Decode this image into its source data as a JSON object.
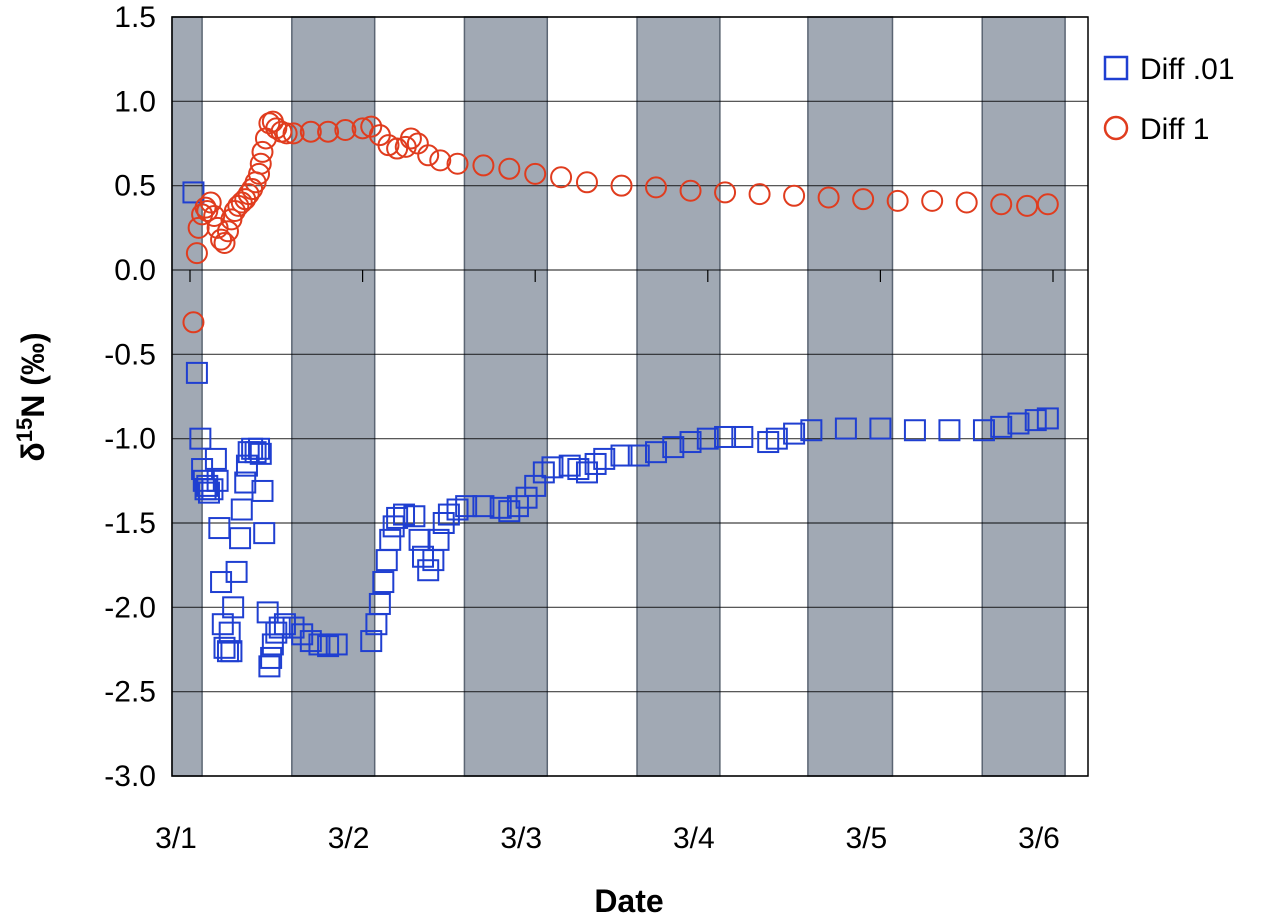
{
  "chart_data": {
    "type": "scatter",
    "xlabel": "Date",
    "ylabel": "δ15N (‰)",
    "ylabel_parts": {
      "pre": "δ",
      "sup": "15",
      "post": "N (‰)"
    },
    "ylim": [
      -3.0,
      1.5
    ],
    "y_ticks": [
      "1.5",
      "1.0",
      "0.5",
      "0.0",
      "-0.5",
      "-1.0",
      "-1.5",
      "-2.0",
      "-2.5",
      "-3.0"
    ],
    "y_tick_values": [
      1.5,
      1.0,
      0.5,
      0.0,
      -0.5,
      -1.0,
      -1.5,
      -2.0,
      -2.5,
      -3.0
    ],
    "xlim": [
      "3/1",
      "3/6"
    ],
    "x_ticks": [
      "3/1",
      "3/2",
      "3/3",
      "3/4",
      "3/5",
      "3/6"
    ],
    "grid": "horizontal",
    "legend_position": "top-right",
    "night_shading": {
      "color": "#a1a9b4",
      "periods": [
        [
          -0.15,
          0.07
        ],
        [
          0.59,
          1.07
        ],
        [
          1.59,
          2.07
        ],
        [
          2.59,
          3.07
        ],
        [
          3.58,
          4.07
        ],
        [
          4.59,
          5.07
        ]
      ]
    },
    "series": [
      {
        "name": "Diff .01",
        "marker": "square",
        "color": "#1f3fd1",
        "points": [
          [
            0.02,
            0.46
          ],
          [
            0.04,
            -0.61
          ],
          [
            0.06,
            -1.0
          ],
          [
            0.07,
            -1.18
          ],
          [
            0.08,
            -1.25
          ],
          [
            0.09,
            -1.3
          ],
          [
            0.1,
            -1.28
          ],
          [
            0.11,
            -1.32
          ],
          [
            0.13,
            -1.3
          ],
          [
            0.15,
            -1.12
          ],
          [
            0.16,
            -1.25
          ],
          [
            0.17,
            -1.53
          ],
          [
            0.18,
            -1.85
          ],
          [
            0.19,
            -2.1
          ],
          [
            0.2,
            -2.24
          ],
          [
            0.22,
            -2.26
          ],
          [
            0.23,
            -2.15
          ],
          [
            0.24,
            -2.26
          ],
          [
            0.25,
            -2.0
          ],
          [
            0.27,
            -1.79
          ],
          [
            0.29,
            -1.59
          ],
          [
            0.3,
            -1.42
          ],
          [
            0.32,
            -1.26
          ],
          [
            0.33,
            -1.16
          ],
          [
            0.34,
            -1.08
          ],
          [
            0.36,
            -1.06
          ],
          [
            0.38,
            -1.08
          ],
          [
            0.4,
            -1.06
          ],
          [
            0.41,
            -1.09
          ],
          [
            0.42,
            -1.31
          ],
          [
            0.43,
            -1.56
          ],
          [
            0.45,
            -2.03
          ],
          [
            0.46,
            -2.35
          ],
          [
            0.47,
            -2.3
          ],
          [
            0.48,
            -2.22
          ],
          [
            0.5,
            -2.15
          ],
          [
            0.52,
            -2.12
          ],
          [
            0.55,
            -2.1
          ],
          [
            0.6,
            -2.12
          ],
          [
            0.65,
            -2.16
          ],
          [
            0.7,
            -2.2
          ],
          [
            0.75,
            -2.22
          ],
          [
            0.8,
            -2.23
          ],
          [
            0.85,
            -2.22
          ],
          [
            1.05,
            -2.2
          ],
          [
            1.08,
            -2.1
          ],
          [
            1.1,
            -1.98
          ],
          [
            1.12,
            -1.85
          ],
          [
            1.14,
            -1.72
          ],
          [
            1.16,
            -1.6
          ],
          [
            1.18,
            -1.52
          ],
          [
            1.2,
            -1.47
          ],
          [
            1.24,
            -1.45
          ],
          [
            1.3,
            -1.46
          ],
          [
            1.33,
            -1.6
          ],
          [
            1.35,
            -1.7
          ],
          [
            1.38,
            -1.78
          ],
          [
            1.41,
            -1.72
          ],
          [
            1.44,
            -1.6
          ],
          [
            1.47,
            -1.5
          ],
          [
            1.5,
            -1.45
          ],
          [
            1.55,
            -1.42
          ],
          [
            1.6,
            -1.4
          ],
          [
            1.7,
            -1.4
          ],
          [
            1.8,
            -1.41
          ],
          [
            1.85,
            -1.43
          ],
          [
            1.9,
            -1.4
          ],
          [
            1.95,
            -1.35
          ],
          [
            2.0,
            -1.28
          ],
          [
            2.05,
            -1.2
          ],
          [
            2.1,
            -1.17
          ],
          [
            2.2,
            -1.16
          ],
          [
            2.25,
            -1.18
          ],
          [
            2.3,
            -1.2
          ],
          [
            2.35,
            -1.15
          ],
          [
            2.4,
            -1.12
          ],
          [
            2.5,
            -1.1
          ],
          [
            2.6,
            -1.1
          ],
          [
            2.7,
            -1.08
          ],
          [
            2.8,
            -1.05
          ],
          [
            2.9,
            -1.02
          ],
          [
            3.0,
            -1.0
          ],
          [
            3.1,
            -0.99
          ],
          [
            3.2,
            -0.99
          ],
          [
            3.35,
            -1.02
          ],
          [
            3.4,
            -1.0
          ],
          [
            3.5,
            -0.97
          ],
          [
            3.6,
            -0.95
          ],
          [
            3.8,
            -0.94
          ],
          [
            4.0,
            -0.94
          ],
          [
            4.2,
            -0.95
          ],
          [
            4.4,
            -0.95
          ],
          [
            4.6,
            -0.95
          ],
          [
            4.7,
            -0.93
          ],
          [
            4.8,
            -0.91
          ],
          [
            4.9,
            -0.89
          ],
          [
            4.97,
            -0.88
          ]
        ]
      },
      {
        "name": "Diff 1",
        "marker": "circle",
        "color": "#e03c1e",
        "points": [
          [
            0.02,
            -0.31
          ],
          [
            0.04,
            0.1
          ],
          [
            0.05,
            0.25
          ],
          [
            0.07,
            0.33
          ],
          [
            0.09,
            0.37
          ],
          [
            0.1,
            0.35
          ],
          [
            0.12,
            0.4
          ],
          [
            0.14,
            0.32
          ],
          [
            0.16,
            0.25
          ],
          [
            0.18,
            0.18
          ],
          [
            0.2,
            0.16
          ],
          [
            0.22,
            0.23
          ],
          [
            0.24,
            0.3
          ],
          [
            0.26,
            0.35
          ],
          [
            0.28,
            0.38
          ],
          [
            0.3,
            0.4
          ],
          [
            0.32,
            0.42
          ],
          [
            0.34,
            0.45
          ],
          [
            0.36,
            0.48
          ],
          [
            0.38,
            0.52
          ],
          [
            0.4,
            0.57
          ],
          [
            0.41,
            0.63
          ],
          [
            0.42,
            0.7
          ],
          [
            0.44,
            0.78
          ],
          [
            0.46,
            0.87
          ],
          [
            0.48,
            0.88
          ],
          [
            0.5,
            0.84
          ],
          [
            0.53,
            0.82
          ],
          [
            0.56,
            0.81
          ],
          [
            0.6,
            0.81
          ],
          [
            0.7,
            0.82
          ],
          [
            0.8,
            0.82
          ],
          [
            0.9,
            0.83
          ],
          [
            1.0,
            0.84
          ],
          [
            1.05,
            0.85
          ],
          [
            1.1,
            0.8
          ],
          [
            1.15,
            0.74
          ],
          [
            1.2,
            0.72
          ],
          [
            1.25,
            0.73
          ],
          [
            1.28,
            0.78
          ],
          [
            1.32,
            0.75
          ],
          [
            1.38,
            0.68
          ],
          [
            1.45,
            0.65
          ],
          [
            1.55,
            0.63
          ],
          [
            1.7,
            0.62
          ],
          [
            1.85,
            0.6
          ],
          [
            2.0,
            0.57
          ],
          [
            2.15,
            0.55
          ],
          [
            2.3,
            0.52
          ],
          [
            2.5,
            0.5
          ],
          [
            2.7,
            0.49
          ],
          [
            2.9,
            0.47
          ],
          [
            3.1,
            0.46
          ],
          [
            3.3,
            0.45
          ],
          [
            3.5,
            0.44
          ],
          [
            3.7,
            0.43
          ],
          [
            3.9,
            0.42
          ],
          [
            4.1,
            0.41
          ],
          [
            4.3,
            0.41
          ],
          [
            4.5,
            0.4
          ],
          [
            4.7,
            0.39
          ],
          [
            4.85,
            0.38
          ],
          [
            4.97,
            0.39
          ]
        ]
      }
    ]
  }
}
